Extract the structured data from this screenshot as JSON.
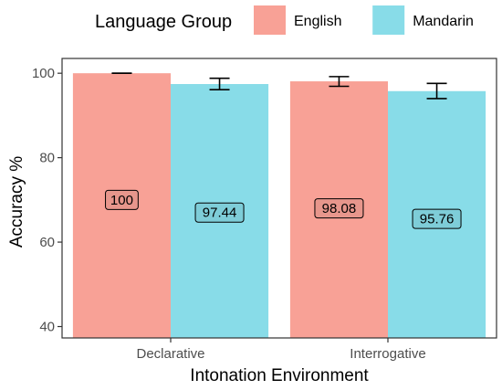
{
  "chart_data": {
    "type": "bar",
    "xlabel": "Intonation Environment",
    "ylabel": "Accuracy %",
    "categories": [
      "Declarative",
      "Interrogative"
    ],
    "legend": {
      "title": "Language Group",
      "placement": "top"
    },
    "series": [
      {
        "name": "English",
        "color": "#F8A196",
        "values": [
          100,
          98.08
        ],
        "error_low": [
          100,
          96.9
        ],
        "error_high": [
          100,
          99.2
        ],
        "data_labels": [
          "100",
          "98.08"
        ],
        "label_y": [
          70,
          68
        ]
      },
      {
        "name": "Mandarin",
        "color": "#88DCE8",
        "values": [
          97.44,
          95.76
        ],
        "error_low": [
          96.1,
          94.0
        ],
        "error_high": [
          98.8,
          97.6
        ],
        "data_labels": [
          "97.44",
          "95.76"
        ],
        "label_y": [
          67,
          65.5
        ]
      }
    ],
    "ylim": [
      37.3,
      103.5
    ],
    "yticks": [
      40,
      60,
      80,
      100
    ],
    "grid": false
  }
}
